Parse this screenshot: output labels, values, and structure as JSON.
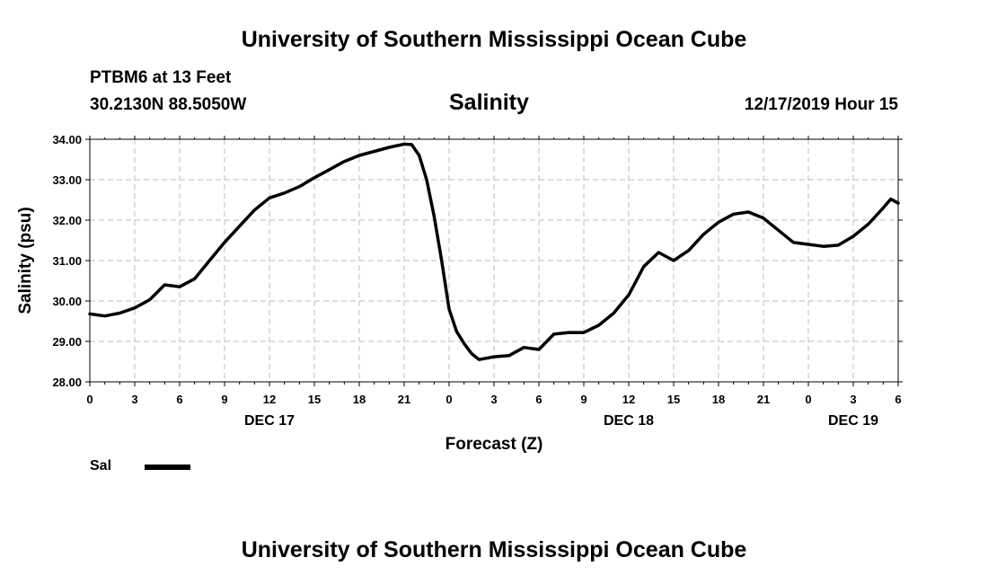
{
  "header": {
    "title": "University of Southern Mississippi Ocean Cube",
    "station": "PTBM6 at 13 Feet",
    "coordinates": "30.2130N 88.5050W",
    "timestamp": "12/17/2019 Hour 15"
  },
  "footer": {
    "title": "University of Southern Mississippi Ocean Cube"
  },
  "legend": {
    "label": "Sal",
    "color": "#000000"
  },
  "chart_data": {
    "type": "line",
    "title": "Salinity",
    "xlabel": "Forecast (Z)",
    "ylabel": "Salinity (psu)",
    "ylim": [
      28,
      34
    ],
    "xlim": [
      0,
      54
    ],
    "grid": true,
    "x_unit": "hours from 00Z Dec 17",
    "x_ticks": [
      0,
      3,
      6,
      9,
      12,
      15,
      18,
      21,
      24,
      27,
      30,
      33,
      36,
      39,
      42,
      45,
      48,
      51,
      54
    ],
    "x_tick_labels": [
      "0",
      "3",
      "6",
      "9",
      "12",
      "15",
      "18",
      "21",
      "0",
      "3",
      "6",
      "9",
      "12",
      "15",
      "18",
      "21",
      "0",
      "3",
      "6"
    ],
    "date_labels": [
      {
        "x": 12,
        "label": "DEC 17"
      },
      {
        "x": 36,
        "label": "DEC 18"
      },
      {
        "x": 51,
        "label": "DEC 19"
      }
    ],
    "y_ticks": [
      28,
      29,
      30,
      31,
      32,
      33,
      34
    ],
    "y_tick_labels": [
      "28.00",
      "29.00",
      "30.00",
      "31.00",
      "32.00",
      "33.00",
      "34.00"
    ],
    "series": [
      {
        "name": "Sal",
        "color": "#000000",
        "points": [
          [
            0,
            29.68
          ],
          [
            1,
            29.63
          ],
          [
            2,
            29.7
          ],
          [
            3,
            29.83
          ],
          [
            4,
            30.03
          ],
          [
            5,
            30.4
          ],
          [
            6,
            30.35
          ],
          [
            7,
            30.55
          ],
          [
            8,
            31.0
          ],
          [
            9,
            31.45
          ],
          [
            10,
            31.85
          ],
          [
            11,
            32.25
          ],
          [
            12,
            32.55
          ],
          [
            13,
            32.67
          ],
          [
            14,
            32.83
          ],
          [
            15,
            33.05
          ],
          [
            16,
            33.25
          ],
          [
            17,
            33.45
          ],
          [
            18,
            33.6
          ],
          [
            19,
            33.7
          ],
          [
            20,
            33.8
          ],
          [
            21,
            33.88
          ],
          [
            21.5,
            33.87
          ],
          [
            22,
            33.6
          ],
          [
            22.5,
            33.0
          ],
          [
            23,
            32.1
          ],
          [
            23.5,
            31.0
          ],
          [
            24,
            29.8
          ],
          [
            24.5,
            29.25
          ],
          [
            25,
            28.95
          ],
          [
            25.5,
            28.7
          ],
          [
            26,
            28.55
          ],
          [
            27,
            28.62
          ],
          [
            28,
            28.65
          ],
          [
            29,
            28.85
          ],
          [
            30,
            28.8
          ],
          [
            31,
            29.18
          ],
          [
            32,
            29.22
          ],
          [
            33,
            29.22
          ],
          [
            34,
            29.4
          ],
          [
            35,
            29.7
          ],
          [
            36,
            30.15
          ],
          [
            37,
            30.85
          ],
          [
            38,
            31.2
          ],
          [
            39,
            31.0
          ],
          [
            40,
            31.25
          ],
          [
            41,
            31.65
          ],
          [
            42,
            31.95
          ],
          [
            43,
            32.15
          ],
          [
            44,
            32.2
          ],
          [
            45,
            32.05
          ],
          [
            46,
            31.75
          ],
          [
            47,
            31.45
          ],
          [
            48,
            31.4
          ],
          [
            49,
            31.35
          ],
          [
            50,
            31.38
          ],
          [
            51,
            31.6
          ],
          [
            52,
            31.9
          ],
          [
            53,
            32.3
          ],
          [
            53.5,
            32.52
          ],
          [
            54,
            32.42
          ]
        ]
      }
    ]
  }
}
